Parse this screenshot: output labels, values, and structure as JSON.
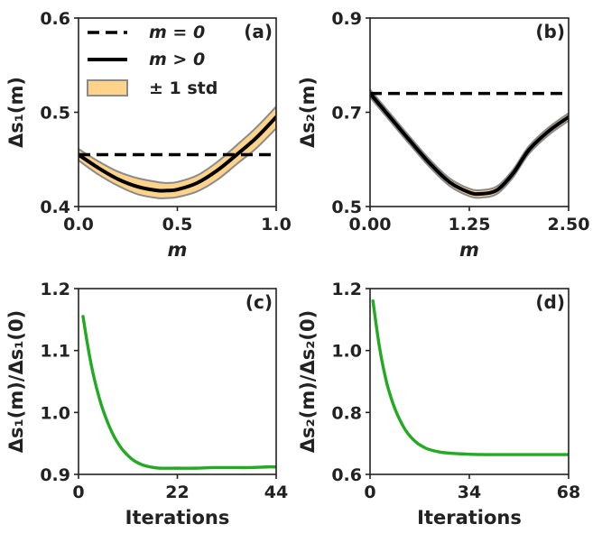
{
  "chart_data": [
    {
      "type": "line",
      "panel_label": "(a)",
      "xlabel": "m",
      "ylabel": "Δs₁(m)",
      "xlim": [
        0,
        1
      ],
      "ylim": [
        0.4,
        0.6
      ],
      "xticks": [
        "0.0",
        "0.5",
        "1.0"
      ],
      "yticks": [
        "0.4",
        "0.5",
        "0.6"
      ],
      "legend": {
        "position": "top-left",
        "entries": [
          "m = 0",
          "m > 0",
          "± 1 std"
        ]
      },
      "series": [
        {
          "name": "m = 0",
          "style": "dashed",
          "color": "#000000",
          "x": [
            0,
            1
          ],
          "y": [
            0.455,
            0.455
          ]
        },
        {
          "name": "m > 0",
          "style": "solid",
          "color": "#000000",
          "x": [
            0,
            0.1,
            0.2,
            0.3,
            0.4,
            0.45,
            0.5,
            0.6,
            0.7,
            0.8,
            0.9,
            1.0
          ],
          "y": [
            0.455,
            0.441,
            0.429,
            0.421,
            0.417,
            0.417,
            0.418,
            0.425,
            0.438,
            0.455,
            0.473,
            0.495
          ]
        },
        {
          "name": "± 1 std",
          "style": "band",
          "color": "#ffd38a",
          "x": [
            0,
            0.1,
            0.2,
            0.3,
            0.4,
            0.45,
            0.5,
            0.6,
            0.7,
            0.8,
            0.9,
            1.0
          ],
          "lower": [
            0.449,
            0.434,
            0.422,
            0.413,
            0.409,
            0.409,
            0.41,
            0.416,
            0.428,
            0.445,
            0.462,
            0.483
          ],
          "upper": [
            0.461,
            0.448,
            0.437,
            0.43,
            0.426,
            0.425,
            0.426,
            0.433,
            0.447,
            0.465,
            0.484,
            0.506
          ]
        }
      ]
    },
    {
      "type": "line",
      "panel_label": "(b)",
      "xlabel": "m",
      "ylabel": "Δs₂(m)",
      "xlim": [
        0,
        2.5
      ],
      "ylim": [
        0.5,
        0.9
      ],
      "xticks": [
        "0.00",
        "1.25",
        "2.50"
      ],
      "yticks": [
        "0.5",
        "0.7",
        "0.9"
      ],
      "series": [
        {
          "name": "m = 0",
          "style": "dashed",
          "color": "#000000",
          "x": [
            0,
            2.5
          ],
          "y": [
            0.74,
            0.74
          ]
        },
        {
          "name": "m > 0",
          "style": "solid",
          "color": "#000000",
          "x": [
            0,
            0.25,
            0.5,
            0.75,
            1.0,
            1.25,
            1.4,
            1.6,
            1.8,
            2.0,
            2.25,
            2.5
          ],
          "y": [
            0.74,
            0.69,
            0.64,
            0.592,
            0.552,
            0.53,
            0.527,
            0.535,
            0.57,
            0.62,
            0.66,
            0.69
          ]
        },
        {
          "name": "± 1 std",
          "style": "band",
          "color": "#ffd38a",
          "x": [
            0,
            0.25,
            0.5,
            0.75,
            1.0,
            1.25,
            1.4,
            1.6,
            1.8,
            2.0,
            2.25,
            2.5
          ],
          "lower": [
            0.732,
            0.682,
            0.632,
            0.584,
            0.544,
            0.522,
            0.519,
            0.527,
            0.562,
            0.612,
            0.652,
            0.682
          ],
          "upper": [
            0.748,
            0.698,
            0.648,
            0.6,
            0.56,
            0.538,
            0.535,
            0.543,
            0.578,
            0.628,
            0.668,
            0.698
          ]
        }
      ]
    },
    {
      "type": "line",
      "panel_label": "(c)",
      "xlabel": "Iterations",
      "ylabel": "Δs₁(m)/Δs₁(0)",
      "xlim": [
        0,
        44
      ],
      "ylim": [
        0.9,
        1.2
      ],
      "xticks": [
        "0",
        "22",
        "44"
      ],
      "yticks": [
        "0.9",
        "1.0",
        "1.1",
        "1.2"
      ],
      "series": [
        {
          "name": "",
          "style": "solid",
          "color": "#22aa22",
          "x": [
            1,
            2,
            3,
            4,
            5,
            6,
            7,
            8,
            9,
            10,
            12,
            14,
            16,
            18,
            22,
            26,
            30,
            34,
            38,
            42,
            44
          ],
          "y": [
            1.155,
            1.11,
            1.071,
            1.04,
            1.014,
            0.993,
            0.975,
            0.96,
            0.948,
            0.938,
            0.924,
            0.916,
            0.912,
            0.91,
            0.91,
            0.91,
            0.911,
            0.911,
            0.911,
            0.912,
            0.912
          ]
        }
      ]
    },
    {
      "type": "line",
      "panel_label": "(d)",
      "xlabel": "Iterations",
      "ylabel": "Δs₂(m)/Δs₂(0)",
      "xlim": [
        0,
        68
      ],
      "ylim": [
        0.6,
        1.2
      ],
      "xticks": [
        "0",
        "34",
        "68"
      ],
      "yticks": [
        "0.6",
        "0.8",
        "1.0",
        "1.2"
      ],
      "series": [
        {
          "name": "",
          "style": "solid",
          "color": "#22aa22",
          "x": [
            1,
            2,
            3,
            4,
            5,
            6,
            8,
            10,
            12,
            14,
            16,
            18,
            20,
            24,
            28,
            34,
            40,
            50,
            60,
            68
          ],
          "y": [
            1.16,
            1.09,
            1.025,
            0.97,
            0.925,
            0.885,
            0.825,
            0.78,
            0.745,
            0.72,
            0.702,
            0.69,
            0.681,
            0.672,
            0.668,
            0.665,
            0.664,
            0.664,
            0.664,
            0.664
          ]
        }
      ]
    }
  ]
}
